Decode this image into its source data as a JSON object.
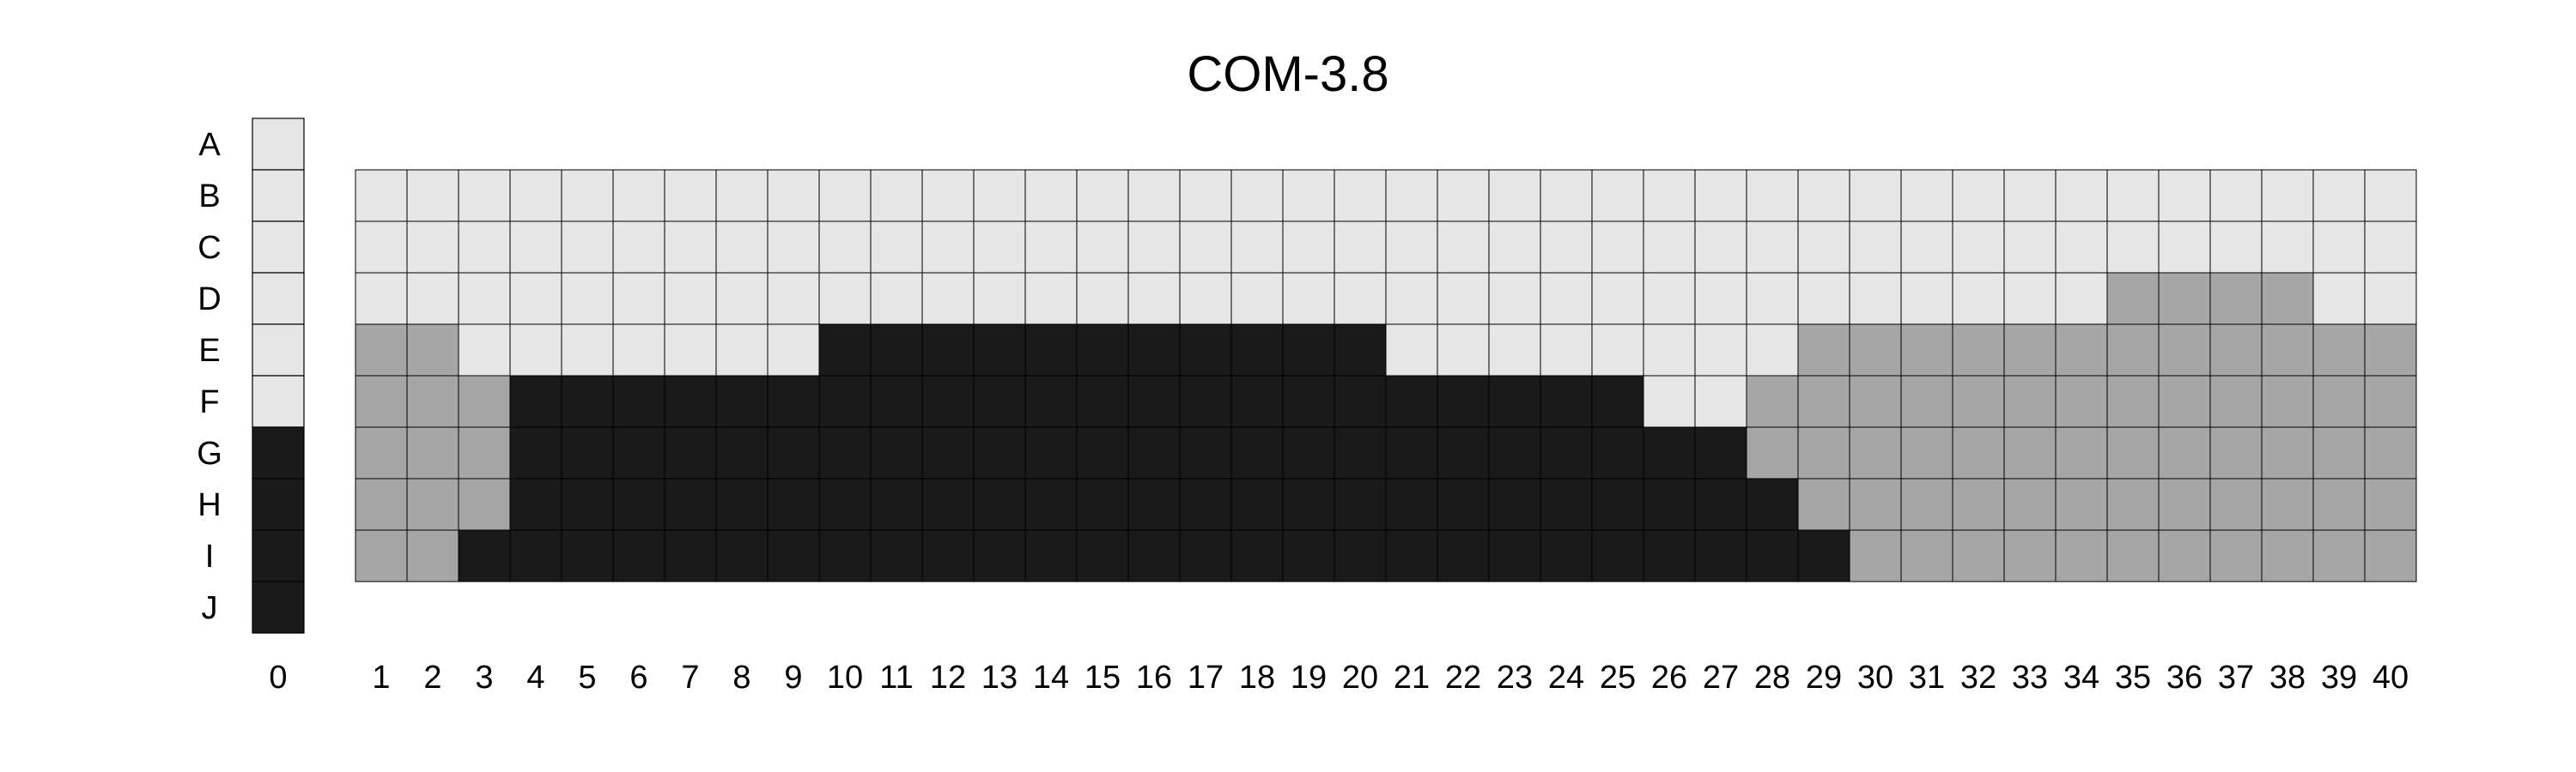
{
  "chart_data": {
    "type": "heatmap",
    "title": "COM-3.8",
    "row_labels": [
      "A",
      "B",
      "C",
      "D",
      "E",
      "F",
      "G",
      "H",
      "I",
      "J"
    ],
    "reference_column": {
      "label": "0",
      "values": [
        0,
        0,
        0,
        0,
        0,
        0,
        2,
        2,
        2,
        2
      ]
    },
    "column_labels": [
      "1",
      "2",
      "3",
      "4",
      "5",
      "6",
      "7",
      "8",
      "9",
      "10",
      "11",
      "12",
      "13",
      "14",
      "15",
      "16",
      "17",
      "18",
      "19",
      "20",
      "21",
      "22",
      "23",
      "24",
      "25",
      "26",
      "27",
      "28",
      "29",
      "30",
      "31",
      "32",
      "33",
      "34",
      "35",
      "36",
      "37",
      "38",
      "39",
      "40"
    ],
    "grid_rows": [
      "B",
      "C",
      "D",
      "E",
      "F",
      "G",
      "H",
      "I"
    ],
    "values": [
      [
        0,
        0,
        0,
        0,
        0,
        0,
        0,
        0,
        0,
        0,
        0,
        0,
        0,
        0,
        0,
        0,
        0,
        0,
        0,
        0,
        0,
        0,
        0,
        0,
        0,
        0,
        0,
        0,
        0,
        0,
        0,
        0,
        0,
        0,
        0,
        0,
        0,
        0,
        0,
        0
      ],
      [
        0,
        0,
        0,
        0,
        0,
        0,
        0,
        0,
        0,
        0,
        0,
        0,
        0,
        0,
        0,
        0,
        0,
        0,
        0,
        0,
        0,
        0,
        0,
        0,
        0,
        0,
        0,
        0,
        0,
        0,
        0,
        0,
        0,
        0,
        0,
        0,
        0,
        0,
        0,
        0
      ],
      [
        0,
        0,
        0,
        0,
        0,
        0,
        0,
        0,
        0,
        0,
        0,
        0,
        0,
        0,
        0,
        0,
        0,
        0,
        0,
        0,
        0,
        0,
        0,
        0,
        0,
        0,
        0,
        0,
        0,
        0,
        0,
        0,
        0,
        0,
        1,
        1,
        1,
        1,
        0,
        0
      ],
      [
        1,
        1,
        0,
        0,
        0,
        0,
        0,
        0,
        0,
        2,
        2,
        2,
        2,
        2,
        2,
        2,
        2,
        2,
        2,
        2,
        0,
        0,
        0,
        0,
        0,
        0,
        0,
        0,
        1,
        1,
        1,
        1,
        1,
        1,
        1,
        1,
        1,
        1,
        1,
        1
      ],
      [
        1,
        1,
        1,
        2,
        2,
        2,
        2,
        2,
        2,
        2,
        2,
        2,
        2,
        2,
        2,
        2,
        2,
        2,
        2,
        2,
        2,
        2,
        2,
        2,
        2,
        0,
        0,
        1,
        1,
        1,
        1,
        1,
        1,
        1,
        1,
        1,
        1,
        1,
        1,
        1
      ],
      [
        1,
        1,
        1,
        2,
        2,
        2,
        2,
        2,
        2,
        2,
        2,
        2,
        2,
        2,
        2,
        2,
        2,
        2,
        2,
        2,
        2,
        2,
        2,
        2,
        2,
        2,
        2,
        1,
        1,
        1,
        1,
        1,
        1,
        1,
        1,
        1,
        1,
        1,
        1,
        1
      ],
      [
        1,
        1,
        1,
        2,
        2,
        2,
        2,
        2,
        2,
        2,
        2,
        2,
        2,
        2,
        2,
        2,
        2,
        2,
        2,
        2,
        2,
        2,
        2,
        2,
        2,
        2,
        2,
        2,
        1,
        1,
        1,
        1,
        1,
        1,
        1,
        1,
        1,
        1,
        1,
        1
      ],
      [
        1,
        1,
        2,
        2,
        2,
        2,
        2,
        2,
        2,
        2,
        2,
        2,
        2,
        2,
        2,
        2,
        2,
        2,
        2,
        2,
        2,
        2,
        2,
        2,
        2,
        2,
        2,
        2,
        2,
        1,
        1,
        1,
        1,
        1,
        1,
        1,
        1,
        1,
        1,
        1
      ]
    ],
    "color_levels": [
      "#e6e6e6",
      "#a6a6a6",
      "#1a1a1a"
    ],
    "grid_line_color": "#000000",
    "legend": "none"
  }
}
